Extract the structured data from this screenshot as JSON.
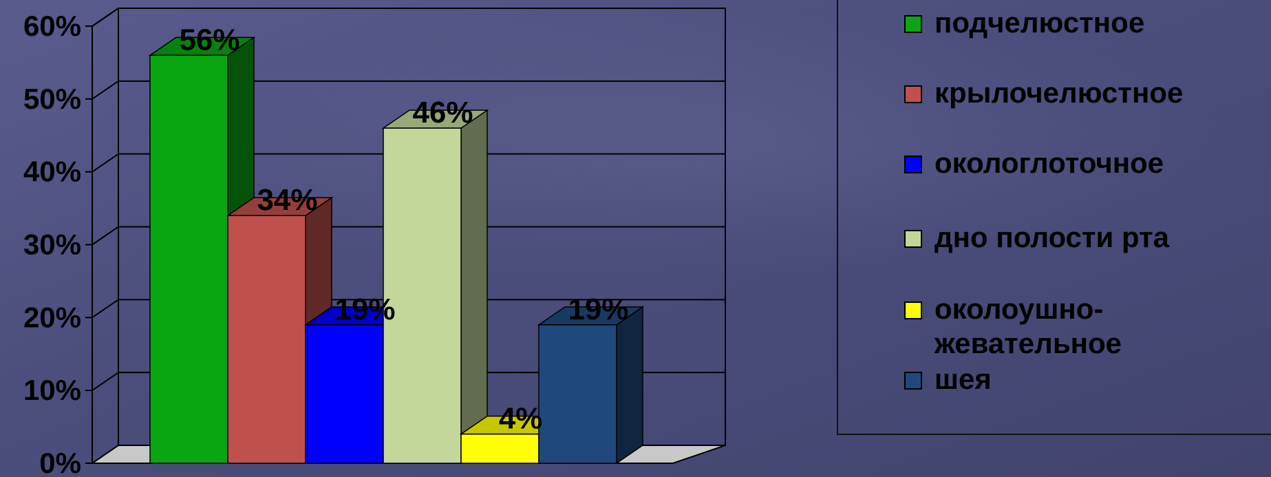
{
  "chart_data": {
    "type": "bar",
    "categories": [
      "подчелюстное",
      "крылочелюстное",
      "окологлоточное",
      "дно полости рта",
      "околоушно-жевательное",
      "шея"
    ],
    "values": [
      56,
      34,
      19,
      46,
      4,
      19
    ],
    "data_labels": [
      "56%",
      "34%",
      "19%",
      "46%",
      "4%",
      "19%"
    ],
    "colors": [
      "#0aa612",
      "#c0504d",
      "#0000ff",
      "#c4d79b",
      "#ffff00",
      "#1f497d"
    ],
    "y_ticks": [
      "0%",
      "10%",
      "20%",
      "30%",
      "40%",
      "50%",
      "60%"
    ],
    "ylim": [
      0,
      60
    ],
    "grid": true,
    "style": "3d",
    "legend_position": "right",
    "title": "",
    "xlabel": "",
    "ylabel": ""
  },
  "legend": {
    "items": [
      {
        "label": "подчелюстное",
        "color": "#0aa612"
      },
      {
        "label": "крылочелюстное",
        "color": "#c0504d"
      },
      {
        "label": "окологлоточное",
        "color": "#0000ff"
      },
      {
        "label": "дно полости рта",
        "color": "#c4d79b"
      },
      {
        "label": "околоушно-жевательное",
        "color": "#ffff00"
      },
      {
        "label": "шея",
        "color": "#1f497d"
      }
    ]
  }
}
